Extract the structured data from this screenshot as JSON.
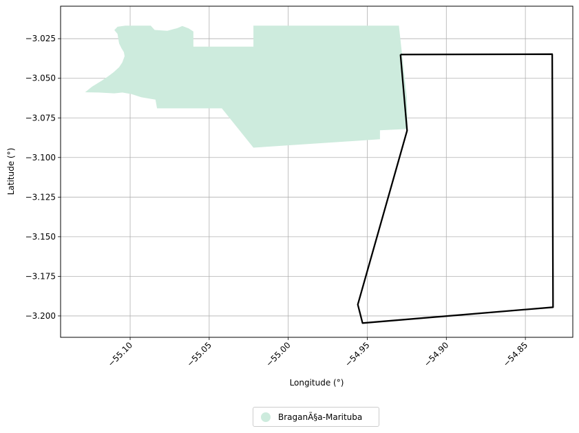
{
  "chart_data": {
    "type": "map",
    "x_label": "Longitude (°)",
    "y_label": "Latitude (°)",
    "xlim": [
      -55.144,
      -54.82
    ],
    "ylim": [
      -3.2135,
      -3.0045
    ],
    "x_ticks": [
      -55.1,
      -55.05,
      -55.0,
      -54.95,
      -54.9,
      -54.85
    ],
    "x_tick_labels": [
      "−55.10",
      "−55.05",
      "−55.00",
      "−54.95",
      "−54.90",
      "−54.85"
    ],
    "y_ticks": [
      -3.025,
      -3.05,
      -3.075,
      -3.1,
      -3.125,
      -3.15,
      -3.175,
      -3.2
    ],
    "y_tick_labels": [
      "−3.025",
      "−3.050",
      "−3.075",
      "−3.100",
      "−3.125",
      "−3.150",
      "−3.175",
      "−3.200"
    ],
    "grid": true,
    "legend_position": "bottom-center",
    "regions": [
      {
        "name": "BraganÃ§a-Marituba",
        "color": "#cdebdd",
        "polygon": [
          [
            -55.1285,
            -3.0588
          ],
          [
            -55.124,
            -3.0552
          ],
          [
            -55.118,
            -3.0515
          ],
          [
            -55.114,
            -3.0488
          ],
          [
            -55.1105,
            -3.0462
          ],
          [
            -55.107,
            -3.043
          ],
          [
            -55.105,
            -3.04
          ],
          [
            -55.1035,
            -3.036
          ],
          [
            -55.104,
            -3.0335
          ],
          [
            -55.1055,
            -3.031
          ],
          [
            -55.107,
            -3.028
          ],
          [
            -55.108,
            -3.022
          ],
          [
            -55.11,
            -3.0196
          ],
          [
            -55.108,
            -3.0175
          ],
          [
            -55.103,
            -3.0168
          ],
          [
            -55.087,
            -3.0168
          ],
          [
            -55.0845,
            -3.0195
          ],
          [
            -55.0765,
            -3.02
          ],
          [
            -55.07,
            -3.0183
          ],
          [
            -55.067,
            -3.017
          ],
          [
            -55.063,
            -3.0185
          ],
          [
            -55.06,
            -3.0205
          ],
          [
            -55.06,
            -3.03
          ],
          [
            -55.022,
            -3.03
          ],
          [
            -55.022,
            -3.0168
          ],
          [
            -54.93,
            -3.0168
          ],
          [
            -54.928,
            -3.035
          ],
          [
            -54.925,
            -3.062
          ],
          [
            -54.9245,
            -3.082
          ],
          [
            -54.942,
            -3.0828
          ],
          [
            -54.942,
            -3.0885
          ],
          [
            -55.022,
            -3.0938
          ],
          [
            -55.042,
            -3.069
          ],
          [
            -55.083,
            -3.069
          ],
          [
            -55.084,
            -3.0635
          ],
          [
            -55.093,
            -3.062
          ],
          [
            -55.099,
            -3.06
          ],
          [
            -55.105,
            -3.059
          ],
          [
            -55.11,
            -3.0595
          ],
          [
            -55.12,
            -3.059
          ],
          [
            -55.1285,
            -3.0588
          ]
        ]
      }
    ],
    "outline": {
      "color": "#000000",
      "polygon": [
        [
          -54.929,
          -3.035
        ],
        [
          -54.833,
          -3.0348
        ],
        [
          -54.8325,
          -3.1945
        ],
        [
          -54.953,
          -3.2045
        ],
        [
          -54.956,
          -3.1928
        ],
        [
          -54.9248,
          -3.083
        ],
        [
          -54.929,
          -3.035
        ]
      ]
    }
  },
  "legend": {
    "label": "BraganÃ§a-Marituba",
    "color": "#cdebdd"
  }
}
